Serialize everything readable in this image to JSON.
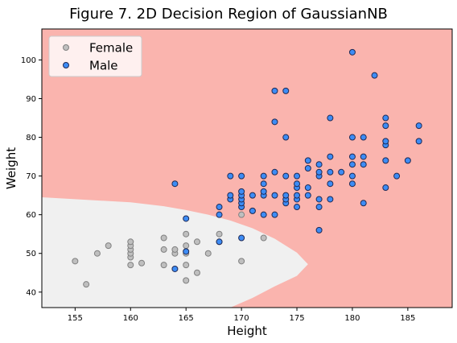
{
  "chart_data": {
    "type": "scatter",
    "title": "Figure 7. 2D Decision Region of GaussianNB",
    "xlabel": "Height",
    "ylabel": "Weight",
    "xlim": [
      152,
      189
    ],
    "ylim": [
      36,
      108
    ],
    "xticks": [
      155,
      160,
      165,
      170,
      175,
      180,
      185
    ],
    "yticks": [
      40,
      50,
      60,
      70,
      80,
      90,
      100
    ],
    "legend_position": "top-left",
    "grid": false,
    "background_colors": {
      "Male": "#fab4ae",
      "Female": "#f0f0f0"
    },
    "decision_boundary": {
      "classes": [
        "Female",
        "Male"
      ],
      "x": [
        152,
        160,
        163,
        165,
        167,
        169,
        171,
        173,
        175,
        176
      ],
      "y_upper": [
        64.5,
        63.2,
        62.2,
        61.2,
        60,
        58.5,
        56.5,
        53.8,
        50.2,
        47.2
      ],
      "y_lower": [
        36,
        36,
        36,
        36,
        36,
        36,
        38.5,
        41.5,
        44.2,
        47.2
      ]
    },
    "series": [
      {
        "name": "Female",
        "marker_fill": "#bfbfbf",
        "marker_edge": "#808080",
        "points": [
          [
            155,
            48
          ],
          [
            156,
            42
          ],
          [
            157,
            50
          ],
          [
            158,
            52
          ],
          [
            160,
            47
          ],
          [
            160,
            49
          ],
          [
            160,
            50
          ],
          [
            160,
            51
          ],
          [
            160,
            52
          ],
          [
            160,
            53
          ],
          [
            161,
            47.5
          ],
          [
            163,
            47
          ],
          [
            163,
            51
          ],
          [
            163,
            54
          ],
          [
            164,
            50
          ],
          [
            164,
            51
          ],
          [
            165,
            43
          ],
          [
            165,
            47
          ],
          [
            165,
            50
          ],
          [
            165,
            52
          ],
          [
            165,
            55
          ],
          [
            166,
            45
          ],
          [
            166,
            53
          ],
          [
            167,
            50
          ],
          [
            168,
            53
          ],
          [
            168,
            55
          ],
          [
            170,
            48
          ],
          [
            170,
            60
          ],
          [
            171,
            61
          ],
          [
            172,
            54
          ]
        ]
      },
      {
        "name": "Male",
        "marker_fill": "#3d8cf5",
        "marker_edge": "#1f2a55",
        "points": [
          [
            164,
            46
          ],
          [
            164,
            68
          ],
          [
            165,
            50.5
          ],
          [
            165,
            59
          ],
          [
            168,
            53
          ],
          [
            168,
            60
          ],
          [
            168,
            62
          ],
          [
            169,
            64
          ],
          [
            169,
            65
          ],
          [
            169,
            70
          ],
          [
            170,
            54
          ],
          [
            170,
            62
          ],
          [
            170,
            63
          ],
          [
            170,
            64
          ],
          [
            170,
            65
          ],
          [
            170,
            66
          ],
          [
            170,
            70
          ],
          [
            171,
            61
          ],
          [
            171,
            65
          ],
          [
            172,
            60
          ],
          [
            172,
            65
          ],
          [
            172,
            66
          ],
          [
            172,
            68
          ],
          [
            172,
            70
          ],
          [
            173,
            60
          ],
          [
            173,
            65
          ],
          [
            173,
            71
          ],
          [
            173,
            84
          ],
          [
            173,
            92
          ],
          [
            174,
            63
          ],
          [
            174,
            64
          ],
          [
            174,
            65
          ],
          [
            174,
            70
          ],
          [
            174,
            80
          ],
          [
            174,
            92
          ],
          [
            175,
            62
          ],
          [
            175,
            64
          ],
          [
            175,
            65
          ],
          [
            175,
            67
          ],
          [
            175,
            68
          ],
          [
            175,
            70
          ],
          [
            176,
            65
          ],
          [
            176,
            67
          ],
          [
            176,
            72
          ],
          [
            176,
            74
          ],
          [
            177,
            56
          ],
          [
            177,
            62
          ],
          [
            177,
            64
          ],
          [
            177,
            70
          ],
          [
            177,
            71
          ],
          [
            177,
            73
          ],
          [
            178,
            64
          ],
          [
            178,
            68
          ],
          [
            178,
            71
          ],
          [
            178,
            75
          ],
          [
            178,
            85
          ],
          [
            179,
            71
          ],
          [
            180,
            68
          ],
          [
            180,
            70
          ],
          [
            180,
            73
          ],
          [
            180,
            75
          ],
          [
            180,
            80
          ],
          [
            180,
            102
          ],
          [
            181,
            63
          ],
          [
            181,
            73
          ],
          [
            181,
            75
          ],
          [
            181,
            80
          ],
          [
            182,
            96
          ],
          [
            183,
            67
          ],
          [
            183,
            74
          ],
          [
            183,
            78
          ],
          [
            183,
            79
          ],
          [
            183,
            83
          ],
          [
            183,
            85
          ],
          [
            184,
            70
          ],
          [
            185,
            74
          ],
          [
            186,
            79
          ],
          [
            186,
            83
          ]
        ]
      }
    ]
  }
}
